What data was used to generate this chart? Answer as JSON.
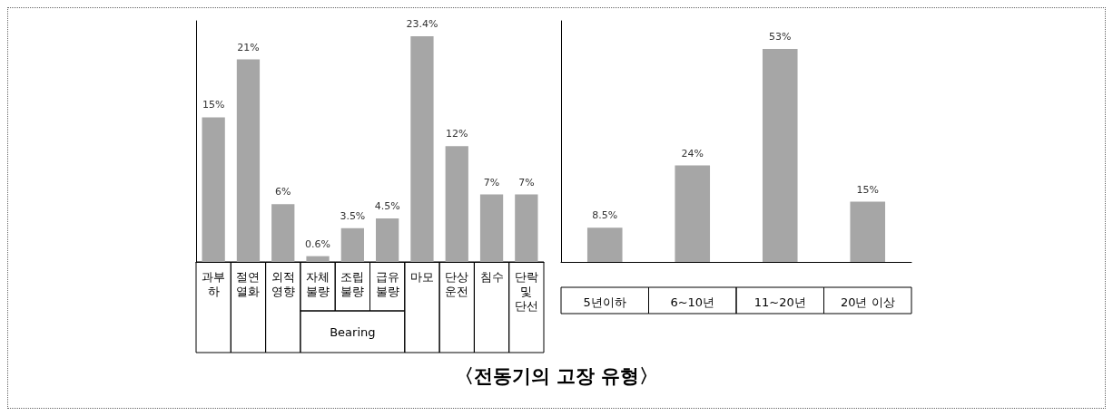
{
  "chart_data": [
    {
      "type": "bar",
      "title": "〈전동기의 고장 유형〉",
      "categories": [
        "과부하",
        "절연열화",
        "외적영향",
        "자체불량",
        "조립불량",
        "급유불량",
        "마모",
        "단상운전",
        "침수",
        "단락 및 단선"
      ],
      "values": [
        15,
        21,
        6,
        0.6,
        3.5,
        4.5,
        23.4,
        12,
        7,
        7
      ],
      "value_labels": [
        "15%",
        "21%",
        "6%",
        "0.6%",
        "3.5%",
        "4.5%",
        "23.4%",
        "12%",
        "7%",
        "7%"
      ],
      "color": "#a6a6a6",
      "grid": false,
      "annotations": [
        "Bearing"
      ]
    },
    {
      "type": "bar",
      "categories": [
        "5년이하",
        "6~10년",
        "11~20년",
        "20년 이상"
      ],
      "values": [
        8.5,
        24,
        53,
        15
      ],
      "value_labels": [
        "8.5%",
        "24%",
        "53%",
        "15%"
      ],
      "color": "#a6a6a6",
      "grid": false
    }
  ]
}
